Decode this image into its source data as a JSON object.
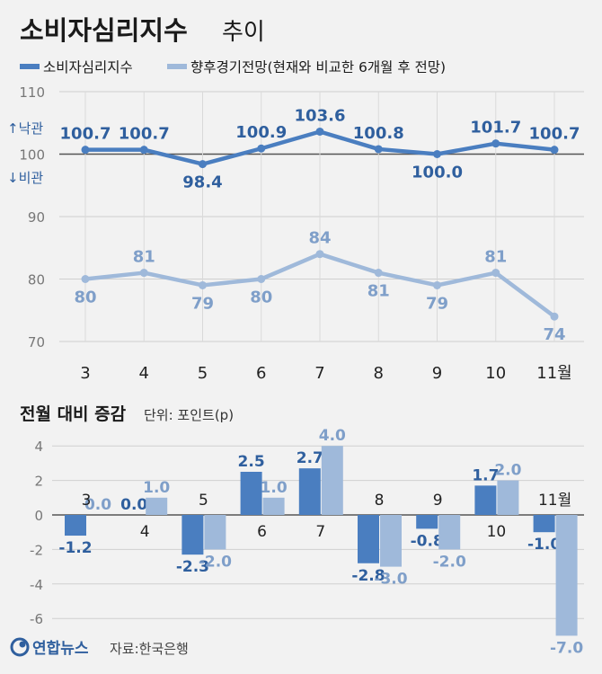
{
  "title": {
    "main": "소비자심리지수",
    "sub": "추이"
  },
  "legend": [
    {
      "label": "소비자심리지수",
      "color": "#4a7ec0"
    },
    {
      "label": "향후경기전망(현재와 비교한 6개월 후 전망)",
      "color": "#9fb9da"
    }
  ],
  "annotations": {
    "up": "↑낙관",
    "down": "↓비관"
  },
  "colors": {
    "dark": "#4a7ec0",
    "light": "#9fb9da",
    "dark_text": "#2f5f9e",
    "light_text": "#7f9fc9"
  },
  "section2": {
    "title": "전월 대비 증감",
    "unit": "단위: 포인트(p)"
  },
  "footer": {
    "brand": "연합뉴스",
    "source": "자료:한국은행"
  },
  "chart_data": [
    {
      "type": "line",
      "categories": [
        "3",
        "4",
        "5",
        "6",
        "7",
        "8",
        "9",
        "10",
        "11월"
      ],
      "ylim": [
        70,
        110
      ],
      "yticks": [
        70,
        80,
        90,
        100,
        110
      ],
      "grid": true,
      "reference_line": 100,
      "series": [
        {
          "name": "소비자심리지수",
          "values": [
            100.7,
            100.7,
            98.4,
            100.9,
            103.6,
            100.8,
            100.0,
            101.7,
            100.7
          ],
          "labels": [
            "100.7",
            "100.7",
            "98.4",
            "100.9",
            "103.6",
            "100.8",
            "100.0",
            "101.7",
            "100.7"
          ]
        },
        {
          "name": "향후경기전망",
          "values": [
            80,
            81,
            79,
            80,
            84,
            81,
            79,
            81,
            74
          ],
          "labels": [
            "80",
            "81",
            "79",
            "80",
            "84",
            "81",
            "79",
            "81",
            "74"
          ]
        }
      ]
    },
    {
      "type": "bar",
      "title": "전월 대비 증감",
      "categories": [
        "3",
        "4",
        "5",
        "6",
        "7",
        "8",
        "9",
        "10",
        "11월"
      ],
      "ylim": [
        -7,
        4
      ],
      "yticks": [
        4,
        2,
        0,
        -2,
        -4,
        -6
      ],
      "yticklabels": [
        "4",
        "2",
        "0",
        "-2",
        "-4",
        "-6"
      ],
      "grid": true,
      "series": [
        {
          "name": "소비자심리지수",
          "values": [
            -1.2,
            0.0,
            -2.3,
            2.5,
            2.7,
            -2.8,
            -0.8,
            1.7,
            -1.0
          ],
          "labels": [
            "-1.2",
            "0.0",
            "-2.3",
            "2.5",
            "2.7",
            "-2.8",
            "-0.8",
            "1.7",
            "-1.0"
          ]
        },
        {
          "name": "향후경기전망",
          "values": [
            0.0,
            1.0,
            -2.0,
            1.0,
            4.0,
            -3.0,
            -2.0,
            2.0,
            -7.0
          ],
          "labels": [
            "0.0",
            "1.0",
            "-2.0",
            "1.0",
            "4.0",
            "-3.0",
            "-2.0",
            "2.0",
            "-7.0"
          ]
        }
      ]
    }
  ]
}
